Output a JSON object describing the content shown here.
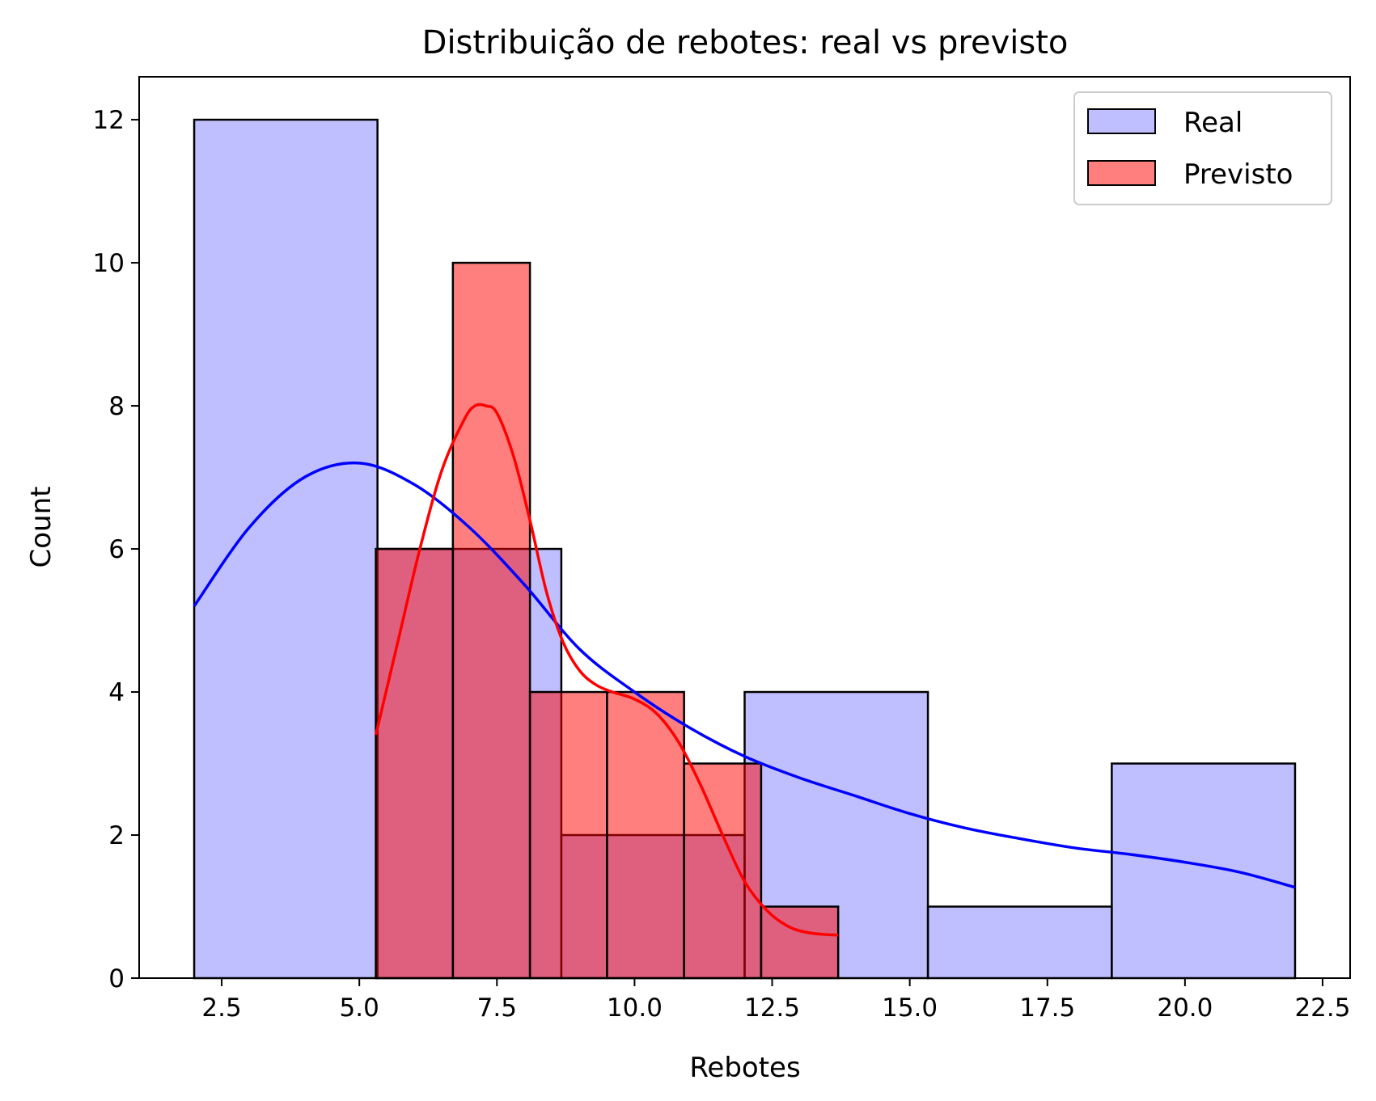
{
  "chart_data": {
    "type": "histogram",
    "title": "Distribuição de rebotes: real vs previsto",
    "xlabel": "Rebotes",
    "ylabel": "Count",
    "xlim": [
      1.0,
      23.0
    ],
    "ylim": [
      0,
      12.6
    ],
    "xticks": [
      2.5,
      5.0,
      7.5,
      10.0,
      12.5,
      15.0,
      17.5,
      20.0,
      22.5
    ],
    "xtick_labels": [
      "2.5",
      "5.0",
      "7.5",
      "10.0",
      "12.5",
      "15.0",
      "17.5",
      "20.0",
      "22.5"
    ],
    "yticks": [
      0,
      2,
      4,
      6,
      8,
      10,
      12
    ],
    "ytick_labels": [
      "0",
      "2",
      "4",
      "6",
      "8",
      "10",
      "12"
    ],
    "grid": false,
    "legend_position": "top-right",
    "series": [
      {
        "name": "Real",
        "color": "#0000ff",
        "fill_color": "#8080ff",
        "fill_opacity": 0.5,
        "bin_edges": [
          2.0,
          5.33,
          8.67,
          12.0,
          15.33,
          18.67,
          22.0
        ],
        "counts": [
          12,
          6,
          2,
          4,
          1,
          3
        ],
        "kde": {
          "x": [
            2.0,
            3.0,
            4.0,
            5.0,
            6.0,
            7.0,
            8.0,
            9.0,
            10.0,
            11.0,
            12.0,
            13.0,
            14.0,
            15.0,
            16.0,
            17.0,
            18.0,
            19.0,
            20.0,
            21.0,
            22.0
          ],
          "y": [
            5.2,
            6.3,
            7.0,
            7.2,
            6.9,
            6.3,
            5.5,
            4.6,
            4.0,
            3.5,
            3.1,
            2.8,
            2.55,
            2.3,
            2.1,
            1.95,
            1.82,
            1.73,
            1.62,
            1.48,
            1.27
          ]
        }
      },
      {
        "name": "Previsto",
        "color": "#ff0000",
        "fill_color": "#ff0000",
        "fill_opacity": 0.5,
        "bin_edges": [
          5.3,
          6.7,
          8.1,
          9.5,
          10.9,
          12.3,
          13.7
        ],
        "counts": [
          6,
          10,
          4,
          4,
          3,
          1
        ],
        "kde": {
          "x": [
            5.3,
            5.7,
            6.1,
            6.5,
            6.9,
            7.1,
            7.3,
            7.5,
            7.8,
            8.1,
            8.4,
            8.7,
            9.0,
            9.3,
            9.6,
            10.0,
            10.4,
            10.8,
            11.2,
            11.6,
            12.0,
            12.4,
            12.8,
            13.2,
            13.7
          ],
          "y": [
            3.4,
            4.7,
            6.0,
            7.1,
            7.8,
            8.0,
            8.0,
            7.9,
            7.3,
            6.4,
            5.4,
            4.7,
            4.3,
            4.1,
            4.0,
            3.9,
            3.7,
            3.3,
            2.7,
            2.0,
            1.35,
            0.95,
            0.72,
            0.63,
            0.6
          ]
        }
      }
    ]
  }
}
